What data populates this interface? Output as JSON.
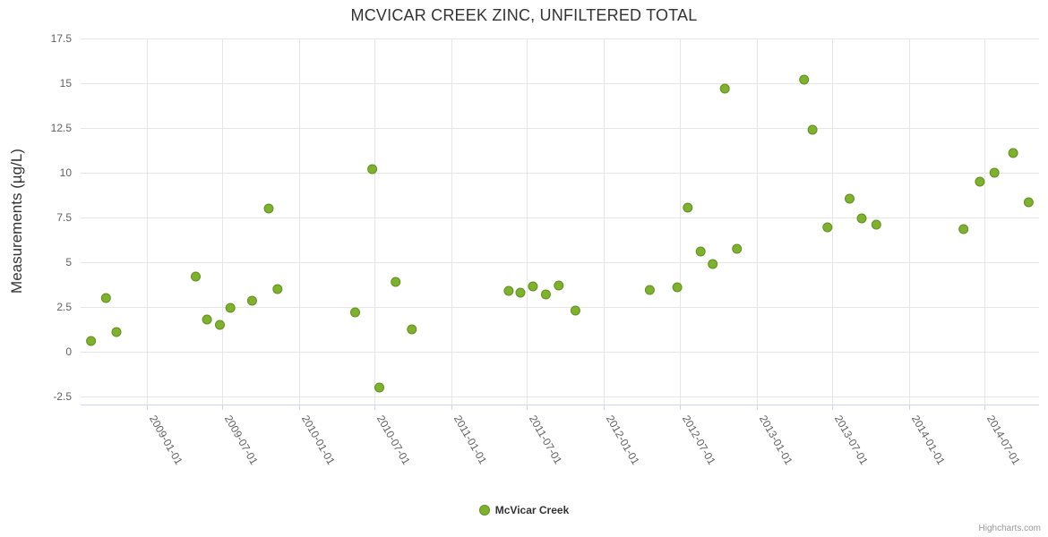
{
  "chart": {
    "title": "MCVICAR CREEK ZINC, UNFILTERED TOTAL",
    "y_axis_title": "Measurements (µg/L)",
    "credit": "Highcharts.com",
    "colors": {
      "marker": "#7eb22c",
      "marker_border": "#648e23",
      "grid": "#e6e6e6",
      "axis_line": "#ccd6eb",
      "tick_label": "#606060",
      "title": "#333333",
      "legend_label": "#333333",
      "credit": "#999999"
    }
  },
  "chart_data": {
    "type": "scatter",
    "title": "MCVICAR CREEK ZINC, UNFILTERED TOTAL",
    "xlabel": "",
    "ylabel": "Measurements (µg/L)",
    "ylim": [
      -2.95,
      17.5
    ],
    "y_ticks": [
      -2.5,
      0,
      2.5,
      5,
      7.5,
      10,
      12.5,
      15,
      17.5
    ],
    "x_ticks": [
      "2009-01-01",
      "2009-07-01",
      "2010-01-01",
      "2010-07-01",
      "2011-01-01",
      "2011-07-01",
      "2012-01-01",
      "2012-07-01",
      "2013-01-01",
      "2013-07-01",
      "2014-01-01",
      "2014-07-01"
    ],
    "grid": true,
    "legend_position": "bottom",
    "series": [
      {
        "name": "McVicar Creek",
        "points": [
          {
            "date": "2008-08-20",
            "value": 0.6
          },
          {
            "date": "2008-09-25",
            "value": 3.0
          },
          {
            "date": "2008-10-20",
            "value": 1.1
          },
          {
            "date": "2009-04-28",
            "value": 4.2
          },
          {
            "date": "2009-05-25",
            "value": 1.8
          },
          {
            "date": "2009-06-25",
            "value": 1.5
          },
          {
            "date": "2009-07-20",
            "value": 2.45
          },
          {
            "date": "2009-09-10",
            "value": 2.85
          },
          {
            "date": "2009-10-20",
            "value": 8.0
          },
          {
            "date": "2009-11-10",
            "value": 3.5
          },
          {
            "date": "2010-05-15",
            "value": 2.2
          },
          {
            "date": "2010-06-25",
            "value": 10.2
          },
          {
            "date": "2010-07-12",
            "value": -2.0
          },
          {
            "date": "2010-08-20",
            "value": 3.9
          },
          {
            "date": "2010-09-28",
            "value": 1.25
          },
          {
            "date": "2011-05-18",
            "value": 3.4
          },
          {
            "date": "2011-06-15",
            "value": 3.3
          },
          {
            "date": "2011-07-15",
            "value": 3.65
          },
          {
            "date": "2011-08-15",
            "value": 3.2
          },
          {
            "date": "2011-09-15",
            "value": 3.7
          },
          {
            "date": "2011-10-25",
            "value": 2.3
          },
          {
            "date": "2012-04-20",
            "value": 3.45
          },
          {
            "date": "2012-06-25",
            "value": 3.6
          },
          {
            "date": "2012-07-20",
            "value": 8.05
          },
          {
            "date": "2012-08-20",
            "value": 5.6
          },
          {
            "date": "2012-09-18",
            "value": 4.9
          },
          {
            "date": "2012-10-17",
            "value": 14.7
          },
          {
            "date": "2012-11-15",
            "value": 5.75
          },
          {
            "date": "2013-04-25",
            "value": 15.2
          },
          {
            "date": "2013-05-15",
            "value": 12.4
          },
          {
            "date": "2013-06-20",
            "value": 6.95
          },
          {
            "date": "2013-08-12",
            "value": 8.55
          },
          {
            "date": "2013-09-10",
            "value": 7.45
          },
          {
            "date": "2013-10-15",
            "value": 7.1
          },
          {
            "date": "2014-05-12",
            "value": 6.85
          },
          {
            "date": "2014-06-20",
            "value": 9.5
          },
          {
            "date": "2014-07-25",
            "value": 10.0
          },
          {
            "date": "2014-09-08",
            "value": 11.1
          },
          {
            "date": "2014-10-15",
            "value": 8.35
          }
        ]
      }
    ]
  }
}
